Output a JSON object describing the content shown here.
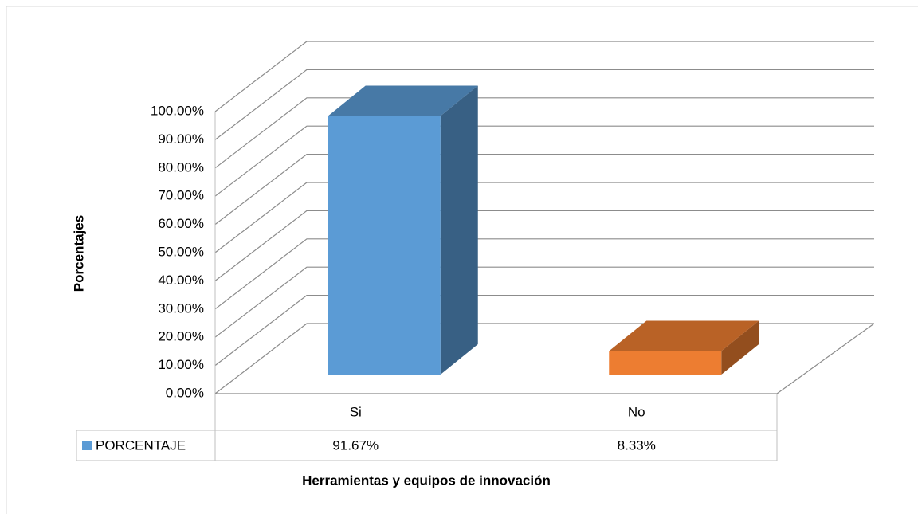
{
  "chart_data": {
    "type": "bar3d",
    "y_axis_label": "Porcentajes",
    "x_axis_label": "Herramientas y equipos de innovación",
    "categories": [
      "Si",
      "No"
    ],
    "series": [
      {
        "name": "PORCENTAJE",
        "color": "#5b9bd5",
        "values": [
          91.67,
          8.33
        ],
        "value_labels": [
          "91.67%",
          "8.33%"
        ]
      }
    ],
    "point_colors": [
      "#5b9bd5",
      "#ed7d31"
    ],
    "ylim": [
      0,
      100
    ],
    "yticks": [
      {
        "value": 0,
        "label": "0.00%"
      },
      {
        "value": 10,
        "label": "10.00%"
      },
      {
        "value": 20,
        "label": "20.00%"
      },
      {
        "value": 30,
        "label": "30.00%"
      },
      {
        "value": 40,
        "label": "40.00%"
      },
      {
        "value": 50,
        "label": "50.00%"
      },
      {
        "value": 60,
        "label": "60.00%"
      },
      {
        "value": 70,
        "label": "70.00%"
      },
      {
        "value": 80,
        "label": "80.00%"
      },
      {
        "value": 90,
        "label": "90.00%"
      },
      {
        "value": 100,
        "label": "100.00%"
      }
    ],
    "grid": true,
    "data_table": true
  }
}
